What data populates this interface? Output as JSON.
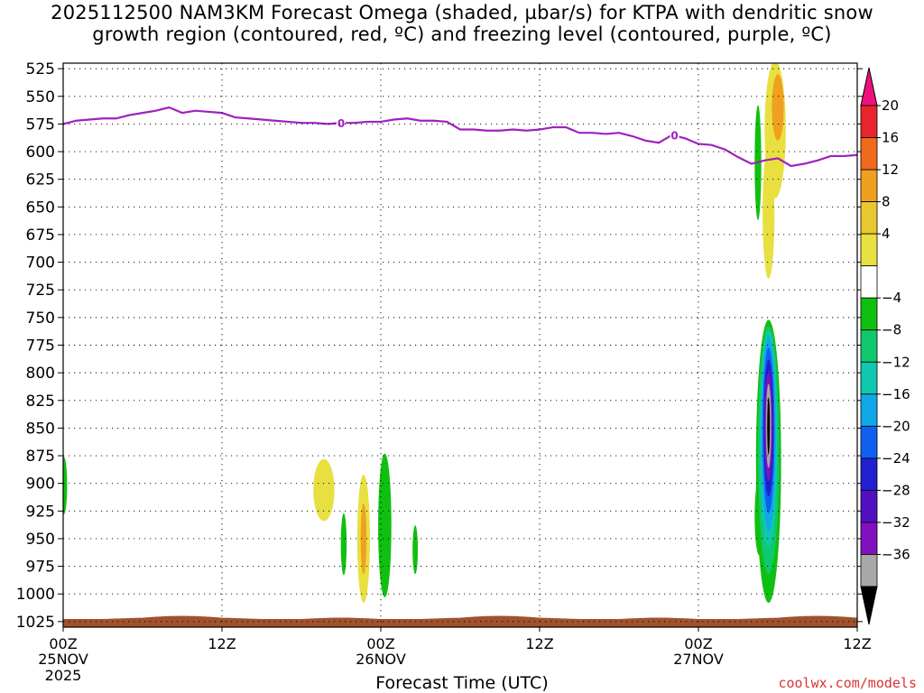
{
  "header": {
    "title_line1": "2025112500 NAM3KM Forecast Omega (shaded, µbar/s) for KTPA with dendritic snow",
    "title_line2": "growth region (contoured, red, ºC) and freezing level (contoured, purple, ºC)"
  },
  "footer": {
    "xlabel": "Forecast Time (UTC)",
    "watermark": "coolwx.com/models"
  },
  "chart_data": {
    "type": "heatmap",
    "model_run": "2025112500",
    "model": "NAM3KM",
    "station": "KTPA",
    "y_axis": {
      "ticks": [
        525,
        550,
        575,
        600,
        625,
        650,
        675,
        700,
        725,
        750,
        775,
        800,
        825,
        850,
        875,
        900,
        925,
        950,
        975,
        1000,
        1025
      ],
      "range": [
        520,
        1030
      ],
      "inverted": true
    },
    "x_axis": {
      "range_hours": [
        0,
        60
      ],
      "ticks": [
        {
          "h": 0,
          "label": "00Z",
          "sub": "25NOV",
          "sub2": "2025"
        },
        {
          "h": 12,
          "label": "12Z",
          "sub": "",
          "sub2": ""
        },
        {
          "h": 24,
          "label": "00Z",
          "sub": "26NOV",
          "sub2": ""
        },
        {
          "h": 36,
          "label": "12Z",
          "sub": "",
          "sub2": ""
        },
        {
          "h": 48,
          "label": "00Z",
          "sub": "27NOV",
          "sub2": ""
        },
        {
          "h": 60,
          "label": "12Z",
          "sub": "",
          "sub2": ""
        }
      ]
    },
    "grid": true,
    "freezing_level": {
      "color": "#a020c0",
      "label": "0",
      "label_points": [
        {
          "h": 21.0,
          "p": 574
        },
        {
          "h": 46.2,
          "p": 585
        }
      ],
      "points": [
        [
          0,
          575
        ],
        [
          1,
          572
        ],
        [
          2,
          571
        ],
        [
          3,
          570
        ],
        [
          4,
          570
        ],
        [
          5,
          567
        ],
        [
          6,
          565
        ],
        [
          7,
          563
        ],
        [
          8,
          560
        ],
        [
          9,
          565
        ],
        [
          10,
          563
        ],
        [
          11,
          564
        ],
        [
          12,
          565
        ],
        [
          13,
          569
        ],
        [
          14,
          570
        ],
        [
          15,
          571
        ],
        [
          16,
          572
        ],
        [
          17,
          573
        ],
        [
          18,
          574
        ],
        [
          19,
          574
        ],
        [
          20,
          575
        ],
        [
          21,
          574
        ],
        [
          22,
          574
        ],
        [
          23,
          573
        ],
        [
          24,
          573
        ],
        [
          25,
          571
        ],
        [
          26,
          570
        ],
        [
          27,
          572
        ],
        [
          28,
          572
        ],
        [
          29,
          573
        ],
        [
          30,
          580
        ],
        [
          31,
          580
        ],
        [
          32,
          581
        ],
        [
          33,
          581
        ],
        [
          34,
          580
        ],
        [
          35,
          581
        ],
        [
          36,
          580
        ],
        [
          37,
          578
        ],
        [
          38,
          578
        ],
        [
          39,
          583
        ],
        [
          40,
          583
        ],
        [
          41,
          584
        ],
        [
          42,
          583
        ],
        [
          43,
          586
        ],
        [
          44,
          590
        ],
        [
          45,
          592
        ],
        [
          46,
          585
        ],
        [
          47,
          588
        ],
        [
          48,
          593
        ],
        [
          49,
          594
        ],
        [
          50,
          598
        ],
        [
          51,
          605
        ],
        [
          52,
          611
        ],
        [
          53,
          608
        ],
        [
          54,
          606
        ],
        [
          55,
          613
        ],
        [
          56,
          611
        ],
        [
          57,
          608
        ],
        [
          58,
          604
        ],
        [
          59,
          604
        ],
        [
          60,
          603
        ]
      ]
    },
    "colorbar": {
      "labels": [
        "20",
        "16",
        "12",
        "8",
        "4",
        "-4",
        "-8",
        "-12",
        "-16",
        "-20",
        "-24",
        "-28",
        "-32",
        "-36"
      ],
      "colors": [
        "#f0107c",
        "#e8242c",
        "#f06a1c",
        "#f0a020",
        "#e8c830",
        "#e8e040",
        "#ffffff",
        "#10c010",
        "#10c870",
        "#10c8b0",
        "#10a8e8",
        "#1060f0",
        "#2020d0",
        "#5010c0",
        "#8010c0",
        "#a8a8a8",
        "#000000"
      ]
    },
    "omega_blobs": [
      {
        "h": 0.05,
        "p": 902,
        "dh": 0.25,
        "dp": 26,
        "color": "#10c010"
      },
      {
        "h": 19.7,
        "p": 906,
        "dh": 0.8,
        "dp": 28,
        "color": "#e8e040"
      },
      {
        "h": 21.2,
        "p": 955,
        "dh": 0.22,
        "dp": 28,
        "color": "#10c010"
      },
      {
        "h": 22.7,
        "p": 950,
        "dh": 0.48,
        "dp": 58,
        "color": "#e8e040"
      },
      {
        "h": 22.7,
        "p": 950,
        "dh": 0.22,
        "dp": 32,
        "color": "#f0a020"
      },
      {
        "h": 24.3,
        "p": 938,
        "dh": 0.5,
        "dp": 65,
        "color": "#10c010"
      },
      {
        "h": 26.6,
        "p": 960,
        "dh": 0.2,
        "dp": 22,
        "color": "#10c010"
      },
      {
        "h": 52.5,
        "p": 610,
        "dh": 0.25,
        "dp": 52,
        "color": "#10c010"
      },
      {
        "h": 53.3,
        "p": 655,
        "dh": 0.45,
        "dp": 60,
        "color": "#e8e040"
      },
      {
        "h": 53.8,
        "p": 580,
        "dh": 0.8,
        "dp": 62,
        "color": "#e8e040"
      },
      {
        "h": 54.0,
        "p": 560,
        "dh": 0.45,
        "dp": 30,
        "color": "#f0a020"
      },
      {
        "h": 52.6,
        "p": 930,
        "dh": 0.35,
        "dp": 35,
        "color": "#10c010"
      },
      {
        "h": 53.3,
        "p": 880,
        "dh": 0.95,
        "dp": 128,
        "color": "#10c010"
      },
      {
        "h": 53.3,
        "p": 870,
        "dh": 0.8,
        "dp": 112,
        "color": "#10c870"
      },
      {
        "h": 53.3,
        "p": 860,
        "dh": 0.65,
        "dp": 98,
        "color": "#10c8b0"
      },
      {
        "h": 53.3,
        "p": 855,
        "dh": 0.55,
        "dp": 88,
        "color": "#10a8e8"
      },
      {
        "h": 53.3,
        "p": 852,
        "dh": 0.45,
        "dp": 75,
        "color": "#1060f0"
      },
      {
        "h": 53.3,
        "p": 850,
        "dh": 0.38,
        "dp": 62,
        "color": "#2020d0"
      },
      {
        "h": 53.3,
        "p": 848,
        "dh": 0.3,
        "dp": 50,
        "color": "#8010c0"
      },
      {
        "h": 53.3,
        "p": 848,
        "dh": 0.2,
        "dp": 38,
        "color": "#a8a8a8"
      },
      {
        "h": 53.3,
        "p": 848,
        "dh": 0.1,
        "dp": 26,
        "color": "#000000"
      }
    ],
    "terrain_color": "#a0522d"
  }
}
